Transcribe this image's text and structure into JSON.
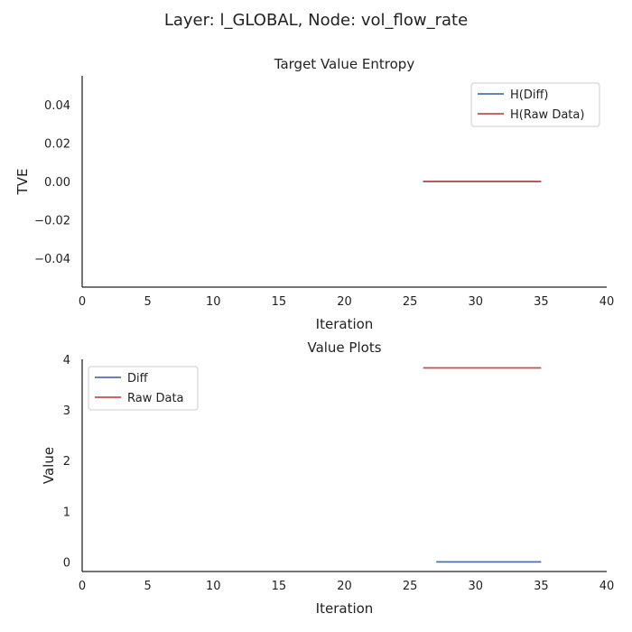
{
  "figure": {
    "suptitle": "Layer: l_GLOBAL, Node: vol_flow_rate"
  },
  "chart_data": [
    {
      "type": "line",
      "title": "Target Value Entropy",
      "xlabel": "Iteration",
      "ylabel": "TVE",
      "xlim": [
        0,
        40
      ],
      "ylim": [
        -0.055,
        0.055
      ],
      "xticks": [
        0,
        5,
        10,
        15,
        20,
        25,
        30,
        35,
        40
      ],
      "xtick_labels": [
        "0",
        "5",
        "10",
        "15",
        "20",
        "25",
        "30",
        "35",
        "40"
      ],
      "yticks": [
        0.04,
        0.02,
        0.0,
        -0.02,
        -0.04
      ],
      "ytick_labels": [
        "0.04",
        "0.02",
        "0.00",
        "−0.02",
        "−0.04"
      ],
      "grid": false,
      "legend_position": "top-right",
      "series": [
        {
          "name": "H(Diff)",
          "color": "#4c72b0",
          "x": [
            26,
            27,
            28,
            29,
            30,
            31,
            32,
            33,
            34,
            35
          ],
          "y": [
            0,
            0,
            0,
            0,
            0,
            0,
            0,
            0,
            0,
            0
          ]
        },
        {
          "name": "H(Raw Data)",
          "color": "#c44e52",
          "x": [
            26,
            27,
            28,
            29,
            30,
            31,
            32,
            33,
            34,
            35
          ],
          "y": [
            0,
            0,
            0,
            0,
            0,
            0,
            0,
            0,
            0,
            0
          ]
        }
      ]
    },
    {
      "type": "line",
      "title": "Value Plots",
      "xlabel": "Iteration",
      "ylabel": "Value",
      "xlim": [
        0,
        40
      ],
      "ylim": [
        -0.19,
        4.0
      ],
      "xticks": [
        0,
        5,
        10,
        15,
        20,
        25,
        30,
        35,
        40
      ],
      "xtick_labels": [
        "0",
        "5",
        "10",
        "15",
        "20",
        "25",
        "30",
        "35",
        "40"
      ],
      "yticks": [
        0,
        1,
        2,
        3,
        4
      ],
      "ytick_labels": [
        "0",
        "1",
        "2",
        "3",
        "4"
      ],
      "grid": false,
      "legend_position": "top-left",
      "series": [
        {
          "name": "Diff",
          "color": "#4c72b0",
          "x": [
            27,
            28,
            29,
            30,
            31,
            32,
            33,
            34,
            35
          ],
          "y": [
            0,
            0,
            0,
            0,
            0,
            0,
            0,
            0,
            0
          ]
        },
        {
          "name": "Raw Data",
          "color": "#c44e52",
          "x": [
            26,
            27,
            28,
            29,
            30,
            31,
            32,
            33,
            34,
            35
          ],
          "y": [
            3.83,
            3.83,
            3.83,
            3.83,
            3.83,
            3.83,
            3.83,
            3.83,
            3.83,
            3.83
          ]
        }
      ]
    }
  ]
}
